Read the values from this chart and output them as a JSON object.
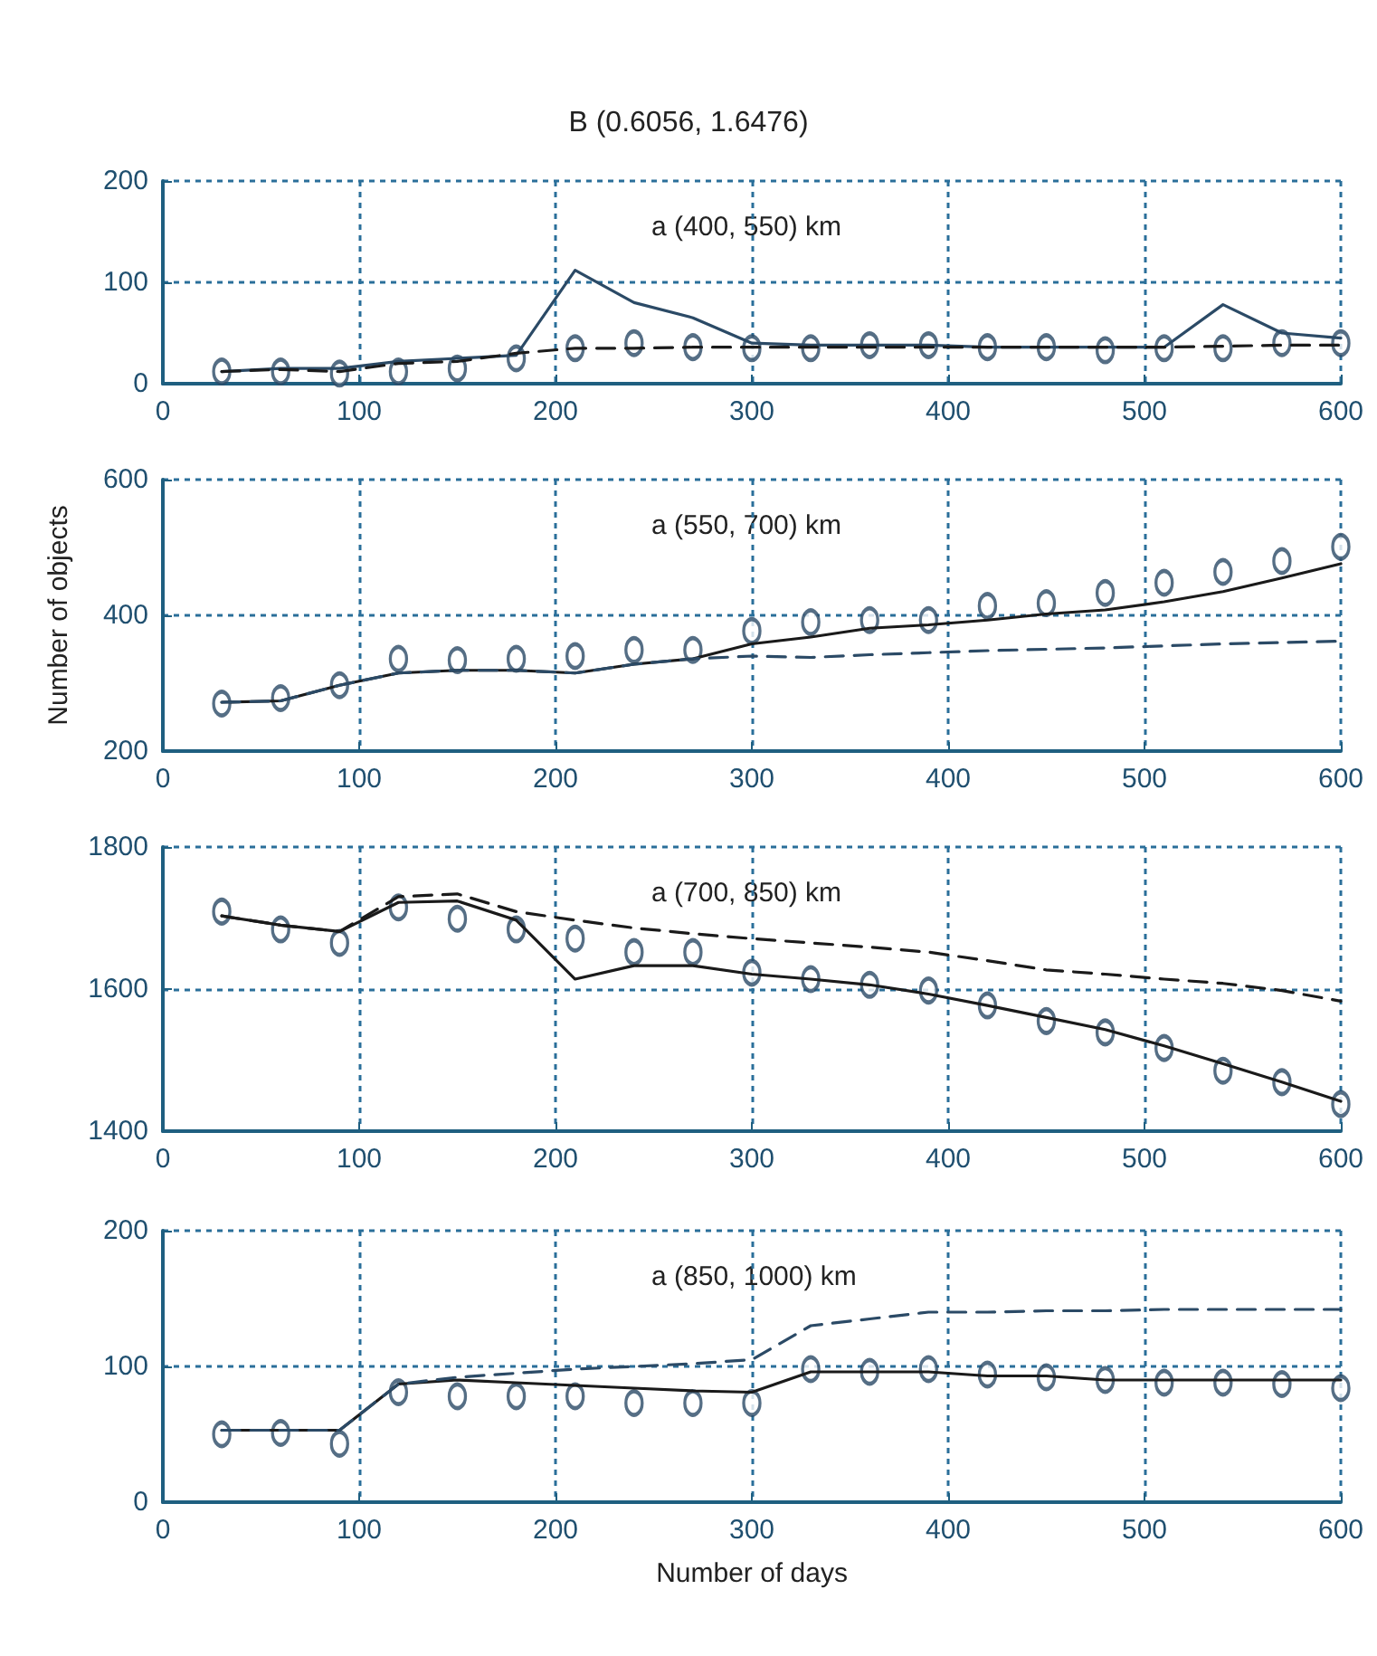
{
  "chart_data": [
    {
      "type": "line",
      "title": "B (0.6056, 1.6476)",
      "annotations": [
        "a (400, 550) km"
      ],
      "x": [
        30,
        60,
        90,
        120,
        150,
        180,
        210,
        240,
        270,
        300,
        330,
        360,
        390,
        420,
        450,
        480,
        510,
        540,
        570,
        600
      ],
      "xlim": [
        0,
        600
      ],
      "xticks": [
        0,
        100,
        200,
        300,
        400,
        500,
        600
      ],
      "ylim": [
        0,
        200
      ],
      "yticks": [
        0,
        100,
        200
      ],
      "grid": true,
      "series": [
        {
          "line_style": "solid",
          "marker": "none",
          "color": "#2b4a66",
          "values": [
            12,
            15,
            15,
            22,
            25,
            28,
            112,
            80,
            65,
            40,
            38,
            38,
            38,
            36,
            36,
            36,
            36,
            78,
            50,
            45
          ]
        },
        {
          "line_style": "dashed",
          "marker": "none",
          "color": "#1a1a1a",
          "values": [
            12,
            14,
            12,
            20,
            22,
            30,
            35,
            35,
            36,
            36,
            36,
            36,
            36,
            36,
            36,
            36,
            36,
            37,
            38,
            38
          ]
        },
        {
          "type": "scatter",
          "marker": "circle",
          "color": "#2b4a66",
          "values": [
            12,
            12,
            10,
            12,
            15,
            25,
            35,
            40,
            36,
            35,
            35,
            38,
            38,
            36,
            36,
            33,
            35,
            35,
            40,
            40
          ]
        }
      ]
    },
    {
      "type": "line",
      "annotations": [
        "a (550, 700) km"
      ],
      "ylabel": "Number of objects",
      "x": [
        30,
        60,
        90,
        120,
        150,
        180,
        210,
        240,
        270,
        300,
        330,
        360,
        390,
        420,
        450,
        480,
        510,
        540,
        570,
        600
      ],
      "xlim": [
        0,
        600
      ],
      "xticks": [
        0,
        100,
        200,
        300,
        400,
        500,
        600
      ],
      "ylim": [
        200,
        600
      ],
      "yticks": [
        200,
        400,
        600
      ],
      "grid": true,
      "series": [
        {
          "line_style": "solid",
          "marker": "none",
          "color": "#1a1a1a",
          "values": [
            272,
            274,
            297,
            315,
            319,
            319,
            315,
            328,
            336,
            358,
            368,
            381,
            386,
            393,
            402,
            408,
            420,
            435,
            455,
            476
          ]
        },
        {
          "line_style": "dashed",
          "marker": "none",
          "color": "#2b4a66",
          "values": [
            272,
            274,
            297,
            315,
            319,
            319,
            315,
            328,
            336,
            340,
            338,
            342,
            345,
            348,
            350,
            352,
            355,
            358,
            360,
            362
          ]
        },
        {
          "type": "scatter",
          "marker": "circle",
          "color": "#2b4a66",
          "values": [
            270,
            278,
            297,
            336,
            334,
            336,
            340,
            349,
            349,
            377,
            390,
            393,
            393,
            414,
            418,
            433,
            448,
            464,
            480,
            501
          ]
        }
      ]
    },
    {
      "type": "line",
      "annotations": [
        "a (700, 850) km"
      ],
      "x": [
        30,
        60,
        90,
        120,
        150,
        180,
        210,
        240,
        270,
        300,
        330,
        360,
        390,
        420,
        450,
        480,
        510,
        540,
        570,
        600
      ],
      "xlim": [
        0,
        600
      ],
      "xticks": [
        0,
        100,
        200,
        300,
        400,
        500,
        600
      ],
      "ylim": [
        1400,
        1800
      ],
      "yticks": [
        1400,
        1600,
        1800
      ],
      "grid": true,
      "series": [
        {
          "line_style": "solid",
          "marker": "none",
          "color": "#1a1a1a",
          "values": [
            1703,
            1690,
            1681,
            1722,
            1724,
            1697,
            1614,
            1633,
            1633,
            1621,
            1614,
            1606,
            1593,
            1577,
            1560,
            1543,
            1520,
            1495,
            1469,
            1442
          ]
        },
        {
          "line_style": "dashed",
          "marker": "none",
          "color": "#1a1a1a",
          "values": [
            1703,
            1690,
            1681,
            1730,
            1734,
            1709,
            1697,
            1686,
            1678,
            1671,
            1665,
            1659,
            1652,
            1640,
            1627,
            1621,
            1614,
            1608,
            1598,
            1583
          ]
        },
        {
          "type": "scatter",
          "marker": "circle",
          "color": "#2b4a66",
          "values": [
            1709,
            1684,
            1665,
            1715,
            1699,
            1684,
            1671,
            1652,
            1652,
            1623,
            1614,
            1606,
            1598,
            1577,
            1555,
            1539,
            1517,
            1485,
            1469,
            1438
          ]
        }
      ]
    },
    {
      "type": "line",
      "annotations": [
        "a (850, 1000) km"
      ],
      "xlabel": "Number of days",
      "x": [
        30,
        60,
        90,
        120,
        150,
        180,
        210,
        240,
        270,
        300,
        330,
        360,
        390,
        420,
        450,
        480,
        510,
        540,
        570,
        600
      ],
      "xlim": [
        0,
        600
      ],
      "xticks": [
        0,
        100,
        200,
        300,
        400,
        500,
        600
      ],
      "ylim": [
        0,
        200
      ],
      "yticks": [
        0,
        100,
        200
      ],
      "grid": true,
      "series": [
        {
          "line_style": "solid",
          "marker": "none",
          "color": "#1a1a1a",
          "values": [
            53,
            53,
            53,
            87,
            90,
            88,
            86,
            84,
            82,
            81,
            96,
            96,
            96,
            93,
            93,
            90,
            90,
            90,
            90,
            90
          ]
        },
        {
          "line_style": "dashed",
          "marker": "none",
          "color": "#2b4a66",
          "values": [
            53,
            53,
            53,
            87,
            92,
            95,
            98,
            100,
            102,
            105,
            130,
            135,
            140,
            140,
            141,
            141,
            142,
            142,
            142,
            142
          ]
        },
        {
          "type": "scatter",
          "marker": "circle",
          "color": "#2b4a66",
          "values": [
            50,
            51,
            43,
            81,
            78,
            78,
            78,
            73,
            73,
            73,
            98,
            96,
            98,
            94,
            92,
            90,
            88,
            88,
            87,
            84
          ]
        }
      ]
    }
  ]
}
